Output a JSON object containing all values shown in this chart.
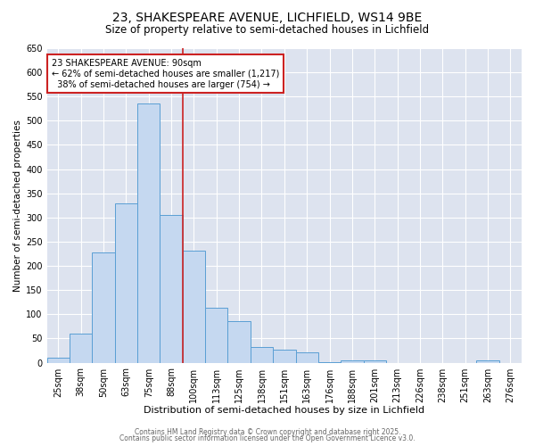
{
  "title": "23, SHAKESPEARE AVENUE, LICHFIELD, WS14 9BE",
  "subtitle": "Size of property relative to semi-detached houses in Lichfield",
  "xlabel": "Distribution of semi-detached houses by size in Lichfield",
  "ylabel": "Number of semi-detached properties",
  "categories": [
    "25sqm",
    "38sqm",
    "50sqm",
    "63sqm",
    "75sqm",
    "88sqm",
    "100sqm",
    "113sqm",
    "125sqm",
    "138sqm",
    "151sqm",
    "163sqm",
    "176sqm",
    "188sqm",
    "201sqm",
    "213sqm",
    "226sqm",
    "238sqm",
    "251sqm",
    "263sqm",
    "276sqm"
  ],
  "values": [
    10,
    60,
    228,
    330,
    535,
    305,
    232,
    113,
    85,
    32,
    27,
    22,
    2,
    5,
    5,
    0,
    0,
    0,
    0,
    5,
    0
  ],
  "bar_color": "#c5d8f0",
  "bar_edge_color": "#5a9fd4",
  "bar_edge_width": 0.7,
  "property_line_color": "#cc2222",
  "annotation_text": "23 SHAKESPEARE AVENUE: 90sqm\n← 62% of semi-detached houses are smaller (1,217)\n  38% of semi-detached houses are larger (754) →",
  "annotation_box_color": "#cc2222",
  "ylim": [
    0,
    650
  ],
  "yticks": [
    0,
    50,
    100,
    150,
    200,
    250,
    300,
    350,
    400,
    450,
    500,
    550,
    600,
    650
  ],
  "background_color": "#dde3ef",
  "footer_line1": "Contains HM Land Registry data © Crown copyright and database right 2025.",
  "footer_line2": "Contains public sector information licensed under the Open Government Licence v3.0.",
  "title_fontsize": 10,
  "subtitle_fontsize": 8.5,
  "xlabel_fontsize": 8,
  "ylabel_fontsize": 7.5,
  "tick_fontsize": 7,
  "annotation_fontsize": 7,
  "footer_fontsize": 5.5
}
